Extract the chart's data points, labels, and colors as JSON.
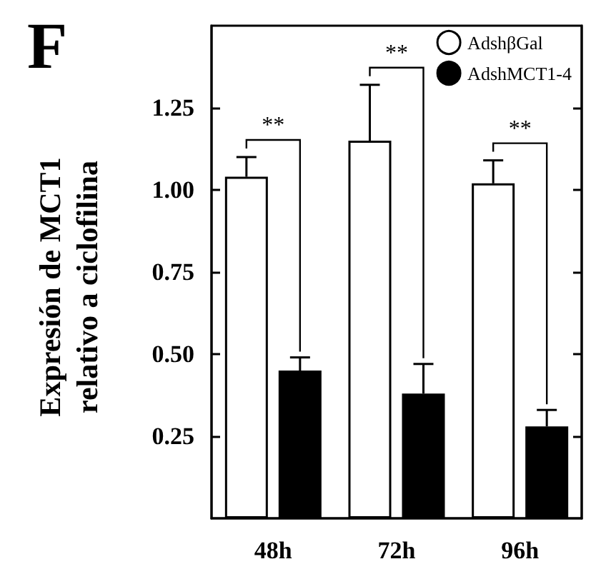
{
  "chart_data": {
    "type": "bar",
    "title": "F",
    "ylabel": "Expresión de MCT1\nrelativo a ciclofilina",
    "categories": [
      "48h",
      "72h",
      "96h"
    ],
    "series": [
      {
        "name": "AdshβGal",
        "color": "#ffffff",
        "values": [
          1.04,
          1.15,
          1.02
        ],
        "errors": [
          [
            1.04,
            1.1
          ],
          [
            1.15,
            1.32
          ],
          [
            1.02,
            1.09
          ]
        ]
      },
      {
        "name": "AdshMCT1-4",
        "color": "#000000",
        "values": [
          0.45,
          0.38,
          0.28
        ],
        "errors": [
          [
            0.45,
            0.49
          ],
          [
            0.38,
            0.47
          ],
          [
            0.28,
            0.33
          ]
        ]
      }
    ],
    "ylim": [
      0,
      1.5
    ],
    "yticks": [
      {
        "value": 0.25,
        "label": "0.25"
      },
      {
        "value": 0.5,
        "label": "0.50"
      },
      {
        "value": 0.75,
        "label": "0.75"
      },
      {
        "value": 1,
        "label": "1.00"
      },
      {
        "value": 1.25,
        "label": "1.25"
      }
    ],
    "annotations": [
      "**",
      "**",
      "**"
    ],
    "legend": "top right",
    "grid": false
  }
}
